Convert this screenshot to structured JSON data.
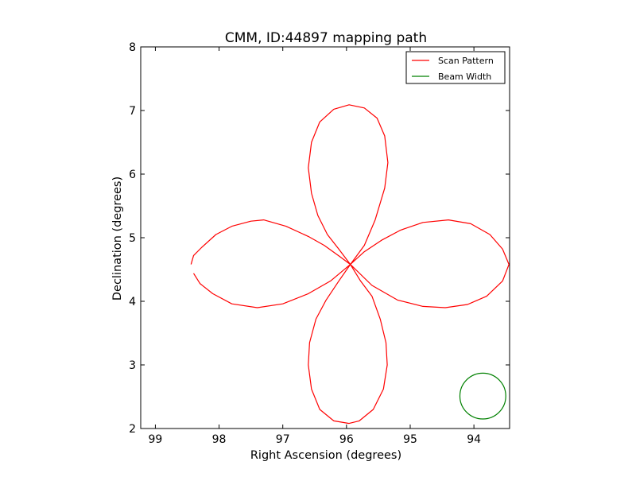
{
  "chart_data": {
    "type": "line",
    "title": "CMM, ID:44897 mapping path",
    "xlabel": "Right Ascension (degrees)",
    "ylabel": "Declination (degrees)",
    "xlim": [
      99.23,
      93.44
    ],
    "ylim": [
      2,
      8
    ],
    "xticks": [
      99,
      98,
      97,
      96,
      95,
      94
    ],
    "yticks": [
      2,
      3,
      4,
      5,
      6,
      7,
      8
    ],
    "grid": false,
    "legend_position": "top-right",
    "center": [
      95.94,
      4.58
    ],
    "series": [
      {
        "name": "Scan Pattern",
        "color": "#ff0000",
        "kind": "rose curve (four petals), radius 2.5 deg",
        "x_start": 98.44,
        "y_start": 4.58,
        "x_end": 98.4,
        "y_end": 4.44,
        "points": [
          [
            98.44,
            4.58
          ],
          [
            98.4,
            4.72
          ],
          [
            98.27,
            4.85
          ],
          [
            98.05,
            5.05
          ],
          [
            97.8,
            5.18
          ],
          [
            97.5,
            5.26
          ],
          [
            97.3,
            5.28
          ],
          [
            96.95,
            5.18
          ],
          [
            96.6,
            5.02
          ],
          [
            96.35,
            4.88
          ],
          [
            96.1,
            4.7
          ],
          [
            95.94,
            4.58
          ],
          [
            96.12,
            4.82
          ],
          [
            96.3,
            5.05
          ],
          [
            96.45,
            5.35
          ],
          [
            96.55,
            5.7
          ],
          [
            96.6,
            6.1
          ],
          [
            96.55,
            6.5
          ],
          [
            96.42,
            6.82
          ],
          [
            96.2,
            7.02
          ],
          [
            95.96,
            7.09
          ],
          [
            95.72,
            7.04
          ],
          [
            95.52,
            6.88
          ],
          [
            95.4,
            6.6
          ],
          [
            95.35,
            6.18
          ],
          [
            95.4,
            5.78
          ],
          [
            95.55,
            5.28
          ],
          [
            95.72,
            4.88
          ],
          [
            95.94,
            4.58
          ],
          [
            95.72,
            4.78
          ],
          [
            95.45,
            4.96
          ],
          [
            95.15,
            5.12
          ],
          [
            94.8,
            5.24
          ],
          [
            94.4,
            5.28
          ],
          [
            94.05,
            5.22
          ],
          [
            93.75,
            5.05
          ],
          [
            93.55,
            4.82
          ],
          [
            93.45,
            4.58
          ],
          [
            93.55,
            4.32
          ],
          [
            93.8,
            4.08
          ],
          [
            94.1,
            3.95
          ],
          [
            94.45,
            3.9
          ],
          [
            94.8,
            3.92
          ],
          [
            95.2,
            4.02
          ],
          [
            95.6,
            4.25
          ],
          [
            95.94,
            4.58
          ],
          [
            95.78,
            4.32
          ],
          [
            95.6,
            4.08
          ],
          [
            95.47,
            3.72
          ],
          [
            95.38,
            3.35
          ],
          [
            95.36,
            3.0
          ],
          [
            95.42,
            2.62
          ],
          [
            95.58,
            2.3
          ],
          [
            95.8,
            2.12
          ],
          [
            95.96,
            2.08
          ],
          [
            96.2,
            2.12
          ],
          [
            96.42,
            2.3
          ],
          [
            96.55,
            2.62
          ],
          [
            96.6,
            3.0
          ],
          [
            96.58,
            3.35
          ],
          [
            96.48,
            3.72
          ],
          [
            96.32,
            4.02
          ],
          [
            96.12,
            4.32
          ],
          [
            95.94,
            4.58
          ],
          [
            96.25,
            4.32
          ],
          [
            96.6,
            4.12
          ],
          [
            97.0,
            3.96
          ],
          [
            97.4,
            3.9
          ],
          [
            97.8,
            3.96
          ],
          [
            98.1,
            4.12
          ],
          [
            98.3,
            4.28
          ],
          [
            98.4,
            4.44
          ]
        ]
      },
      {
        "name": "Beam Width",
        "color": "#008000",
        "kind": "circle",
        "center": [
          93.86,
          2.51
        ],
        "radius_deg": 0.36
      }
    ]
  }
}
